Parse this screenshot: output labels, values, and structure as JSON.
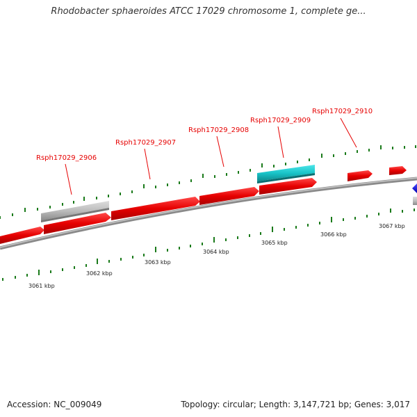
{
  "title": "Rhodobacter sphaeroides ATCC 17029 chromosome 1, complete ge...",
  "gene_labels": [
    "Rsph17029_2906",
    "Rsph17029_2907",
    "Rsph17029_2908",
    "Rsph17029_2909",
    "Rsph17029_2910"
  ],
  "scale_labels": [
    "3061 kbp",
    "3062 kbp",
    "3063 kbp",
    "3064 kbp",
    "3065 kbp",
    "3066 kbp",
    "3067 kbp"
  ],
  "colors": {
    "gene_red": "#e60000",
    "gene_cyan": "#19c4c8",
    "gene_gray": "#bdbdbd",
    "gene_blue": "#0000e0",
    "backbone": "#8a8a8a",
    "tick_green": "#1a7a1a"
  },
  "footer": {
    "accession": "Accession: NC_009049",
    "topology": "Topology: circular; Length: 3,147,721 bp; Genes: 3,017"
  }
}
